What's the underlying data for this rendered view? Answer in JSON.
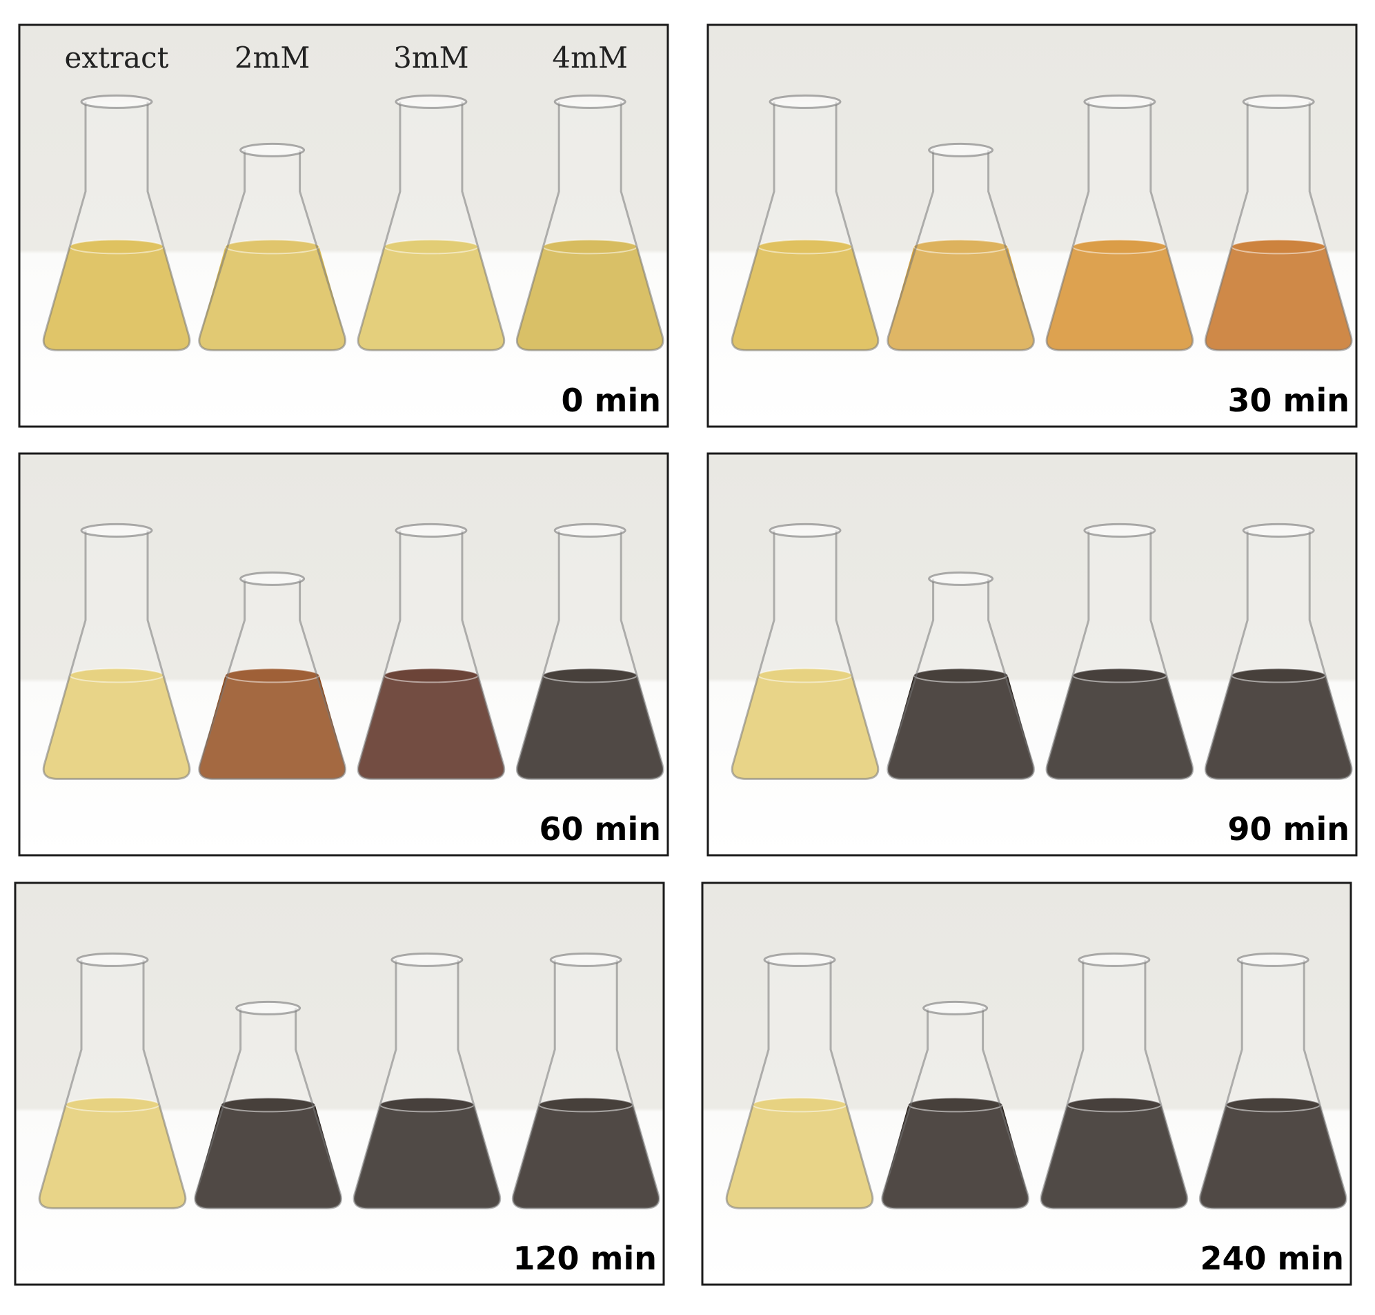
{
  "sample_labels": [
    "extract",
    "2mM",
    "3mM",
    "4mM"
  ],
  "panels": [
    {
      "time": "0 min"
    },
    {
      "time": "30 min"
    },
    {
      "time": "60 min"
    },
    {
      "time": "90 min"
    },
    {
      "time": "120 min"
    },
    {
      "time": "240 min"
    }
  ]
}
